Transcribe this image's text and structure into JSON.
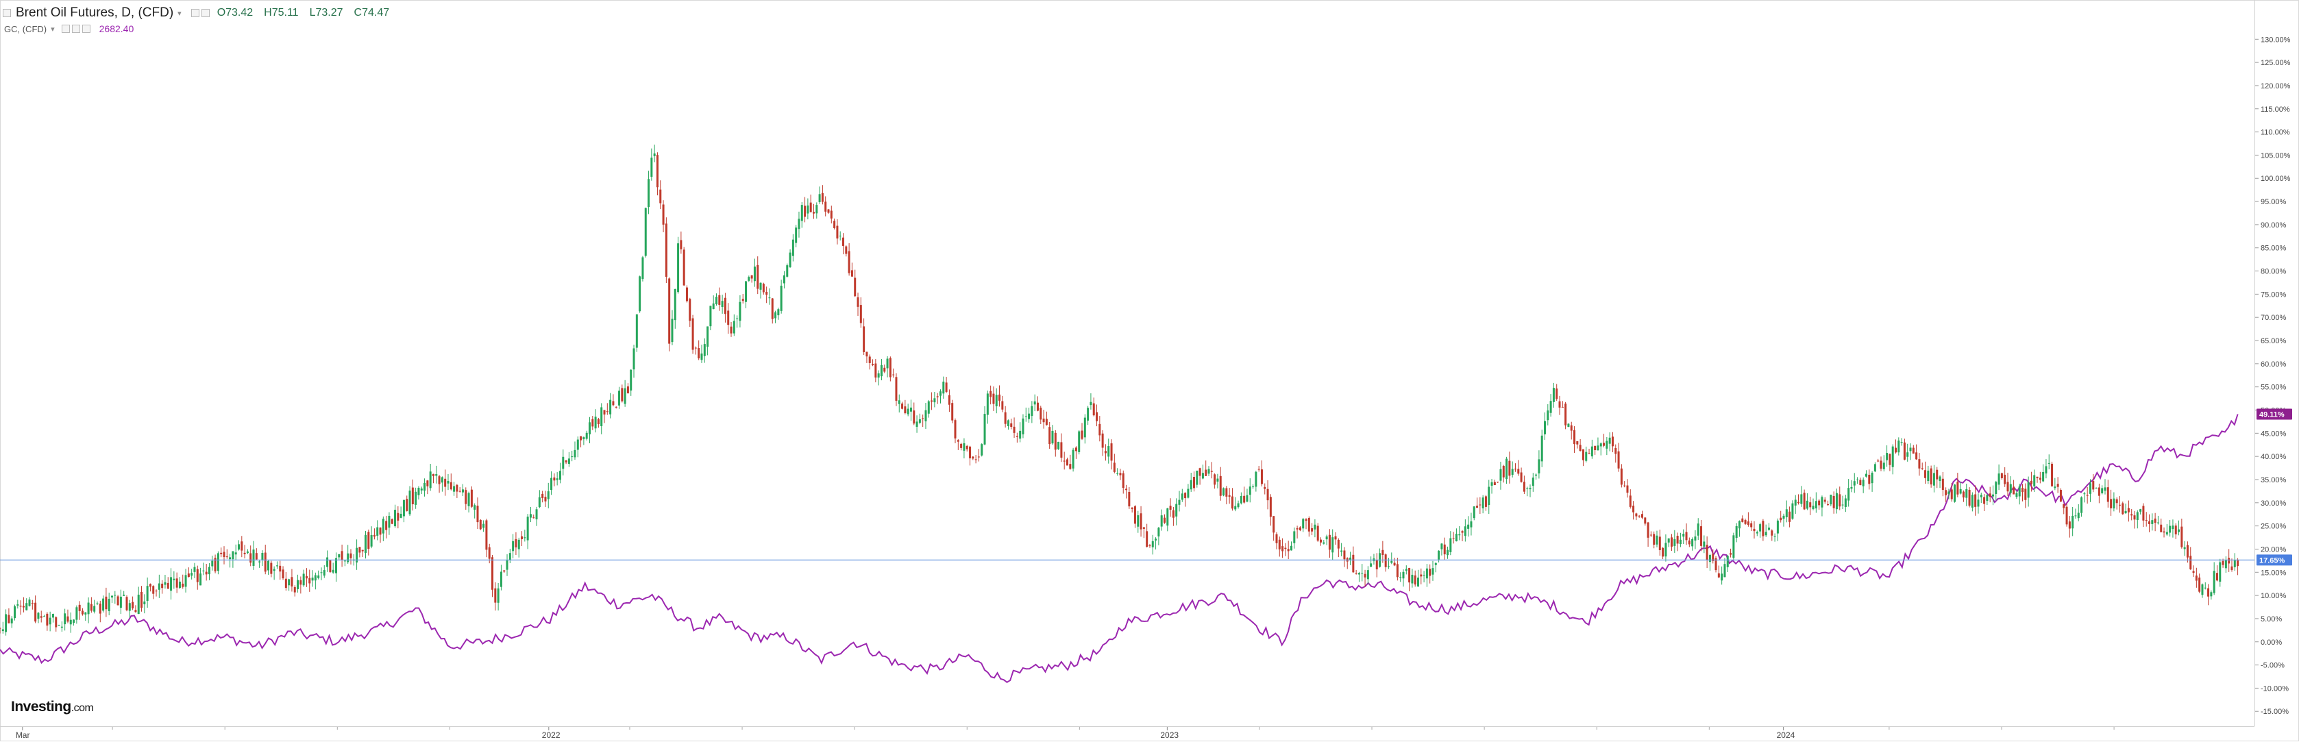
{
  "legend": {
    "symbol_title": "Brent Oil Futures, D, (CFD)",
    "open": "O73.42",
    "high": "H75.11",
    "low": "L73.27",
    "close": "C74.47",
    "compare_title": "GC, (CFD)",
    "compare_value": "2682.40"
  },
  "logo": {
    "main": "Investing",
    "suffix": ".com"
  },
  "colors": {
    "up": "#26a65b",
    "down": "#c0392b",
    "gold_line": "#9c27b0",
    "crosshair": "#6f9be0",
    "oil_badge": "#4a7fe0",
    "gold_badge": "#8e1f8e"
  },
  "chart_data": {
    "type": "line",
    "title": "Brent Oil Futures, D, (CFD)",
    "y_unit": "percent change",
    "ylim": [
      -16,
      133
    ],
    "y_ticks": [
      130,
      125,
      120,
      115,
      110,
      105,
      100,
      95,
      90,
      85,
      80,
      75,
      70,
      65,
      60,
      55,
      50,
      45,
      40,
      35,
      30,
      25,
      20,
      15,
      10,
      5,
      0,
      -5,
      -10,
      -15
    ],
    "y_tick_labels": [
      "130.00%",
      "125.00%",
      "120.00%",
      "115.00%",
      "110.00%",
      "105.00%",
      "100.00%",
      "95.00%",
      "90.00%",
      "85.00%",
      "80.00%",
      "75.00%",
      "70.00%",
      "65.00%",
      "60.00%",
      "55.00%",
      "50.00%",
      "45.00%",
      "40.00%",
      "35.00%",
      "30.00%",
      "25.00%",
      "20.00%",
      "15.00%",
      "10.00%",
      "5.00%",
      "0.00%",
      "-5.00%",
      "-10.00%",
      "-15.00%"
    ],
    "x_labels": [
      {
        "label": "Mar",
        "frac": 0.01
      },
      {
        "label": "2022",
        "frac": 0.244
      },
      {
        "label": "2023",
        "frac": 0.519
      },
      {
        "label": "2024",
        "frac": 0.793
      }
    ],
    "current_badges": {
      "oil": {
        "value": 17.65,
        "label": "17.65%"
      },
      "gold": {
        "value": 49.11,
        "label": "49.11%"
      }
    },
    "series": [
      {
        "name": "Brent Oil Futures, D, (CFD)",
        "style": "candlestick",
        "x": [
          0,
          0.01,
          0.02,
          0.035,
          0.05,
          0.06,
          0.07,
          0.09,
          0.105,
          0.115,
          0.13,
          0.14,
          0.16,
          0.175,
          0.19,
          0.205,
          0.215,
          0.22,
          0.228,
          0.24,
          0.255,
          0.265,
          0.28,
          0.285,
          0.29,
          0.295,
          0.298,
          0.302,
          0.306,
          0.31,
          0.318,
          0.325,
          0.335,
          0.345,
          0.355,
          0.365,
          0.375,
          0.38,
          0.385,
          0.39,
          0.395,
          0.4,
          0.41,
          0.42,
          0.425,
          0.435,
          0.44,
          0.45,
          0.46,
          0.475,
          0.485,
          0.5,
          0.51,
          0.525,
          0.535,
          0.55,
          0.56,
          0.57,
          0.58,
          0.595,
          0.605,
          0.615,
          0.63,
          0.645,
          0.66,
          0.67,
          0.68,
          0.69,
          0.705,
          0.715,
          0.725,
          0.74,
          0.755,
          0.765,
          0.775,
          0.785,
          0.8,
          0.815,
          0.83,
          0.845,
          0.86,
          0.87,
          0.88,
          0.89,
          0.9,
          0.91,
          0.92,
          0.93,
          0.94,
          0.95,
          0.96,
          0.97,
          0.975,
          0.98,
          0.985,
          0.99,
          0.995
        ],
        "values": [
          3,
          9,
          4,
          6,
          9,
          8,
          12,
          15,
          20,
          18,
          12,
          15,
          20,
          27,
          35,
          33,
          25,
          10,
          20,
          30,
          42,
          48,
          55,
          80,
          108,
          90,
          62,
          88,
          70,
          60,
          75,
          68,
          80,
          70,
          92,
          95,
          85,
          75,
          62,
          58,
          60,
          50,
          48,
          55,
          45,
          38,
          55,
          45,
          50,
          38,
          50,
          32,
          22,
          30,
          38,
          28,
          36,
          18,
          26,
          20,
          14,
          18,
          12,
          22,
          30,
          38,
          31,
          54,
          40,
          44,
          28,
          20,
          24,
          12,
          28,
          22,
          30,
          30,
          35,
          42,
          35,
          32,
          30,
          35,
          32,
          38,
          25,
          35,
          30,
          28,
          25,
          22,
          15,
          10,
          14,
          17,
          17.65
        ]
      },
      {
        "name": "GC, (CFD)",
        "style": "line",
        "x": [
          0,
          0.02,
          0.04,
          0.06,
          0.08,
          0.1,
          0.115,
          0.13,
          0.15,
          0.17,
          0.185,
          0.2,
          0.215,
          0.23,
          0.245,
          0.26,
          0.275,
          0.29,
          0.3,
          0.31,
          0.32,
          0.335,
          0.35,
          0.365,
          0.38,
          0.4,
          0.415,
          0.43,
          0.445,
          0.46,
          0.475,
          0.49,
          0.5,
          0.515,
          0.53,
          0.545,
          0.56,
          0.57,
          0.58,
          0.59,
          0.6,
          0.615,
          0.63,
          0.645,
          0.66,
          0.675,
          0.69,
          0.705,
          0.72,
          0.73,
          0.74,
          0.76,
          0.78,
          0.8,
          0.82,
          0.84,
          0.86,
          0.87,
          0.88,
          0.89,
          0.9,
          0.91,
          0.92,
          0.93,
          0.94,
          0.95,
          0.96,
          0.97,
          0.98,
          0.99,
          0.995
        ],
        "values": [
          -2,
          -4,
          2,
          5,
          0,
          1,
          -1,
          2,
          0,
          3,
          7,
          -1,
          0,
          2,
          5,
          12,
          8,
          10,
          6,
          3,
          5,
          1,
          1,
          -4,
          0,
          -5,
          -6,
          -3,
          -8,
          -6,
          -5,
          -2,
          4,
          6,
          8,
          10,
          3,
          0,
          10,
          13,
          12,
          12,
          8,
          7,
          9,
          10,
          8,
          4,
          12,
          14,
          16,
          20,
          15,
          14,
          16,
          14,
          25,
          35,
          33,
          30,
          35,
          32,
          30,
          35,
          38,
          35,
          42,
          40,
          43,
          45,
          49.11
        ]
      }
    ],
    "grid": false,
    "legend": "top-left"
  }
}
